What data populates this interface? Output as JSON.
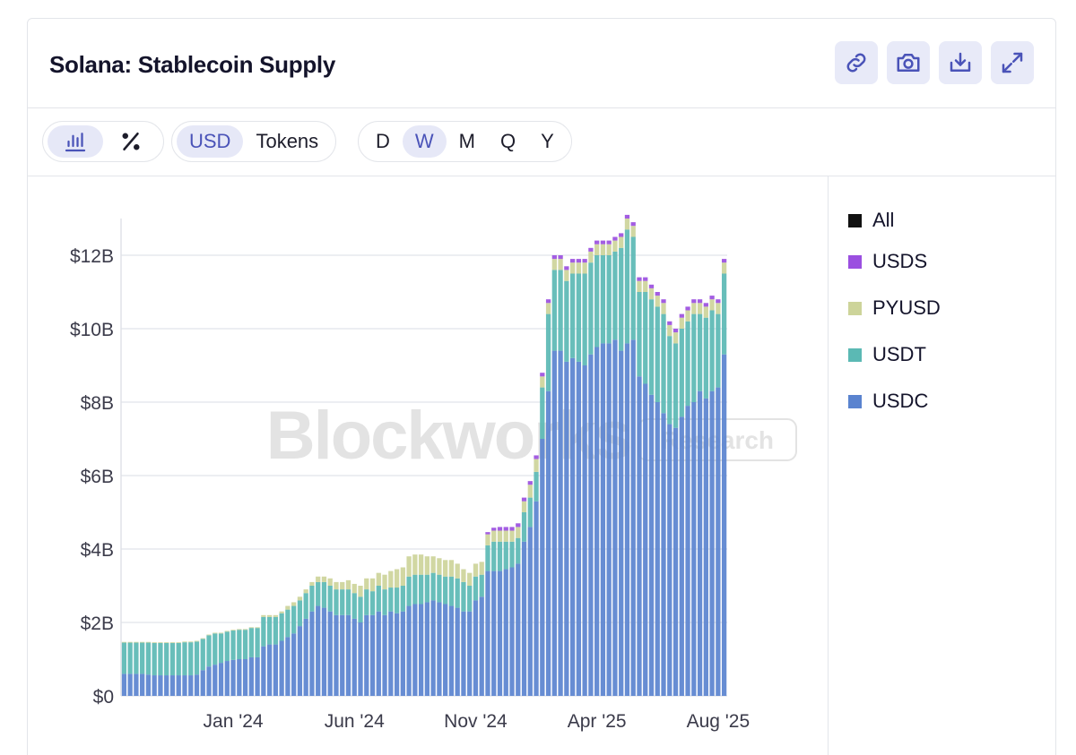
{
  "header": {
    "title": "Solana: Stablecoin Supply"
  },
  "tools": [
    {
      "name": "link-icon"
    },
    {
      "name": "camera-icon"
    },
    {
      "name": "download-icon"
    },
    {
      "name": "expand-icon"
    }
  ],
  "toolbar": {
    "chart_modes": [
      {
        "name": "bar-chart-icon",
        "active": true
      },
      {
        "name": "percent-icon",
        "active": false
      }
    ],
    "units": [
      {
        "label": "USD",
        "active": true
      },
      {
        "label": "Tokens",
        "active": false
      }
    ],
    "periods": [
      {
        "label": "D",
        "active": false
      },
      {
        "label": "W",
        "active": true
      },
      {
        "label": "M",
        "active": false
      },
      {
        "label": "Q",
        "active": false
      },
      {
        "label": "Y",
        "active": false
      }
    ]
  },
  "watermark": {
    "brand": "Blockworks",
    "sub": "Research"
  },
  "colors": {
    "All": "#111111",
    "USDS": "#9b4fe0",
    "PYUSD": "#cdd49a",
    "USDT": "#5bb9b4",
    "USDC": "#5a83cf"
  },
  "chart_data": {
    "type": "bar",
    "stacked": true,
    "title": "Solana: Stablecoin Supply",
    "xlabel": "",
    "ylabel": "",
    "ylim": [
      0,
      13000000000
    ],
    "y_ticks": [
      "$0",
      "$2B",
      "$4B",
      "$6B",
      "$8B",
      "$10B",
      "$12B"
    ],
    "y_tick_values": [
      0,
      2000000000,
      4000000000,
      6000000000,
      8000000000,
      10000000000,
      12000000000
    ],
    "x_tick_labels": [
      "Jan '24",
      "Jun '24",
      "Nov '24",
      "Apr '25",
      "Aug '25"
    ],
    "x_tick_weeks": [
      18,
      38,
      58,
      78,
      98
    ],
    "period": "weekly",
    "weeks": 100,
    "grid": true,
    "legend": "right",
    "legend_entries": [
      "All",
      "USDS",
      "PYUSD",
      "USDT",
      "USDC"
    ],
    "series": [
      {
        "name": "USDC",
        "values": [
          0.6,
          0.6,
          0.6,
          0.6,
          0.58,
          0.56,
          0.56,
          0.56,
          0.56,
          0.56,
          0.56,
          0.56,
          0.58,
          0.7,
          0.8,
          0.85,
          0.9,
          0.95,
          0.98,
          1.0,
          1.0,
          1.05,
          1.05,
          1.35,
          1.4,
          1.4,
          1.5,
          1.6,
          1.7,
          1.9,
          2.1,
          2.3,
          2.45,
          2.4,
          2.3,
          2.2,
          2.2,
          2.2,
          2.1,
          2.0,
          2.2,
          2.2,
          2.3,
          2.2,
          2.3,
          2.25,
          2.3,
          2.45,
          2.5,
          2.5,
          2.55,
          2.6,
          2.55,
          2.5,
          2.45,
          2.4,
          2.3,
          2.3,
          2.6,
          2.7,
          3.4,
          3.4,
          3.4,
          3.45,
          3.5,
          3.6,
          4.2,
          4.6,
          5.3,
          7.0,
          8.3,
          9.4,
          9.4,
          9.1,
          9.2,
          9.1,
          9.0,
          9.3,
          9.5,
          9.6,
          9.6,
          9.7,
          9.4,
          9.6,
          9.7,
          8.7,
          8.5,
          8.2,
          8.0,
          7.7,
          7.4,
          7.3,
          7.6,
          7.9,
          8.0,
          8.3,
          8.1,
          8.3,
          8.4,
          9.3
        ]
      },
      {
        "name": "USDT",
        "values": [
          0.85,
          0.85,
          0.85,
          0.85,
          0.87,
          0.88,
          0.88,
          0.88,
          0.88,
          0.88,
          0.9,
          0.9,
          0.9,
          0.85,
          0.85,
          0.85,
          0.8,
          0.8,
          0.8,
          0.8,
          0.8,
          0.8,
          0.8,
          0.8,
          0.75,
          0.75,
          0.75,
          0.75,
          0.75,
          0.7,
          0.7,
          0.7,
          0.65,
          0.7,
          0.7,
          0.7,
          0.7,
          0.7,
          0.7,
          0.7,
          0.7,
          0.65,
          0.7,
          0.7,
          0.65,
          0.7,
          0.7,
          0.8,
          0.8,
          0.8,
          0.75,
          0.75,
          0.75,
          0.75,
          0.8,
          0.8,
          0.8,
          0.7,
          0.65,
          0.6,
          0.7,
          0.8,
          0.8,
          0.75,
          0.7,
          0.7,
          0.8,
          0.8,
          0.8,
          1.4,
          2.1,
          2.2,
          2.2,
          2.2,
          2.3,
          2.4,
          2.5,
          2.5,
          2.5,
          2.4,
          2.4,
          2.4,
          2.8,
          3.1,
          2.8,
          2.3,
          2.5,
          2.6,
          2.6,
          2.7,
          2.4,
          2.3,
          2.4,
          2.3,
          2.4,
          2.1,
          2.2,
          2.2,
          2.0,
          2.2
        ]
      },
      {
        "name": "PYUSD",
        "values": [
          0.02,
          0.02,
          0.02,
          0.02,
          0.02,
          0.02,
          0.02,
          0.02,
          0.02,
          0.02,
          0.02,
          0.02,
          0.02,
          0.02,
          0.02,
          0.02,
          0.02,
          0.02,
          0.02,
          0.02,
          0.02,
          0.02,
          0.02,
          0.05,
          0.05,
          0.05,
          0.05,
          0.1,
          0.1,
          0.1,
          0.1,
          0.1,
          0.15,
          0.15,
          0.2,
          0.2,
          0.2,
          0.25,
          0.25,
          0.3,
          0.3,
          0.35,
          0.35,
          0.4,
          0.45,
          0.5,
          0.5,
          0.55,
          0.55,
          0.55,
          0.5,
          0.45,
          0.45,
          0.45,
          0.45,
          0.4,
          0.35,
          0.35,
          0.35,
          0.35,
          0.3,
          0.3,
          0.3,
          0.3,
          0.3,
          0.3,
          0.3,
          0.35,
          0.35,
          0.3,
          0.3,
          0.3,
          0.3,
          0.3,
          0.3,
          0.3,
          0.3,
          0.3,
          0.3,
          0.3,
          0.3,
          0.3,
          0.3,
          0.3,
          0.3,
          0.3,
          0.3,
          0.3,
          0.3,
          0.3,
          0.3,
          0.3,
          0.3,
          0.3,
          0.3,
          0.3,
          0.3,
          0.3,
          0.3,
          0.3
        ]
      },
      {
        "name": "USDS",
        "values": [
          0,
          0,
          0,
          0,
          0,
          0,
          0,
          0,
          0,
          0,
          0,
          0,
          0,
          0,
          0,
          0,
          0,
          0,
          0,
          0,
          0,
          0,
          0,
          0,
          0,
          0,
          0,
          0,
          0,
          0,
          0,
          0,
          0,
          0,
          0,
          0,
          0,
          0,
          0,
          0,
          0,
          0,
          0,
          0,
          0,
          0,
          0,
          0,
          0,
          0,
          0,
          0,
          0,
          0,
          0,
          0,
          0,
          0,
          0,
          0,
          0.06,
          0.08,
          0.1,
          0.1,
          0.1,
          0.1,
          0.1,
          0.1,
          0.1,
          0.1,
          0.1,
          0.1,
          0.1,
          0.1,
          0.1,
          0.1,
          0.1,
          0.1,
          0.1,
          0.1,
          0.1,
          0.1,
          0.1,
          0.1,
          0.1,
          0.1,
          0.1,
          0.1,
          0.1,
          0.1,
          0.1,
          0.1,
          0.1,
          0.1,
          0.1,
          0.1,
          0.1,
          0.1,
          0.1,
          0.1
        ]
      }
    ],
    "value_unit": "billion USD"
  }
}
